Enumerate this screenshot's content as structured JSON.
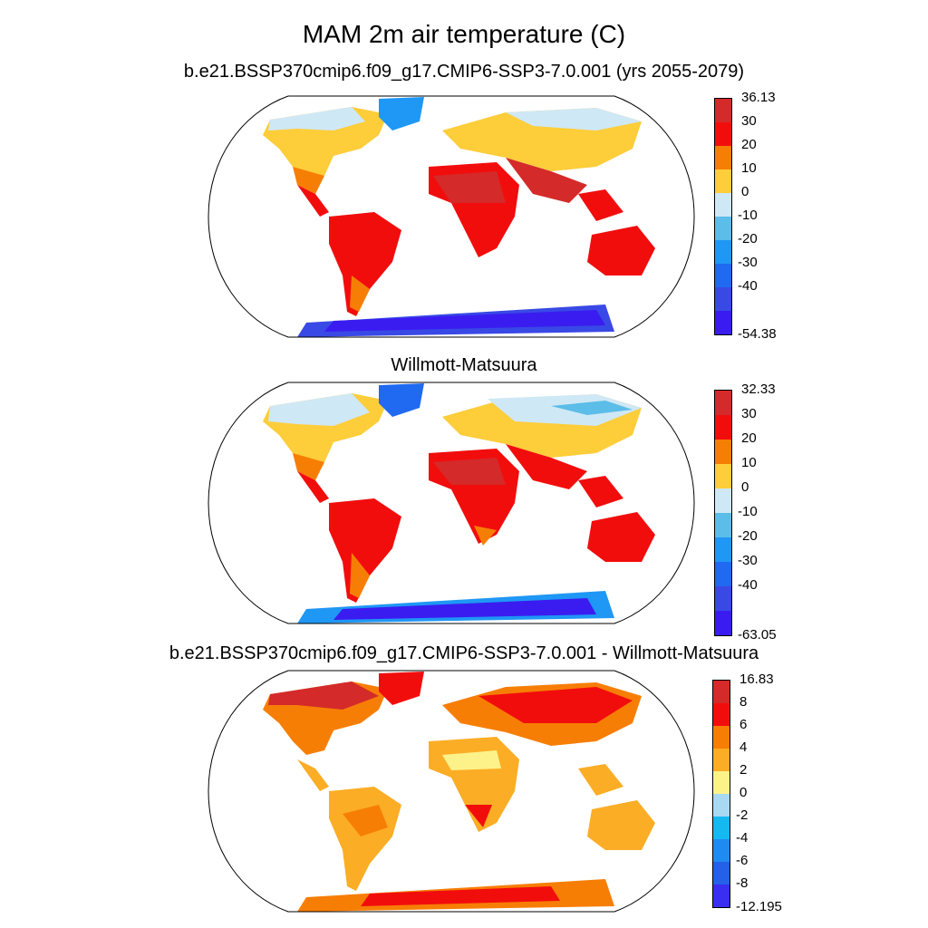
{
  "title": "MAM 2m air temperature (C)",
  "panels": [
    {
      "title": "b.e21.BSSP370cmip6.f09_g17.CMIP6-SSP3-7.0.001 (yrs 2055-2079)",
      "colorbar": {
        "labels": [
          "36.13",
          "30",
          "20",
          "10",
          "0",
          "-10",
          "-20",
          "-30",
          "-40",
          "-54.38"
        ],
        "colors": [
          "#d42a2a",
          "#f20d0d",
          "#f77e05",
          "#fdcd3a",
          "#cfe8f5",
          "#5bbde8",
          "#1f97f5",
          "#1f6af0",
          "#3949e5",
          "#3a1cf0"
        ]
      }
    },
    {
      "title": "Willmott-Matsuura",
      "colorbar": {
        "labels": [
          "32.33",
          "30",
          "20",
          "10",
          "0",
          "-10",
          "-20",
          "-30",
          "-40",
          "-63.05"
        ],
        "colors": [
          "#d42a2a",
          "#f20d0d",
          "#f77e05",
          "#fdcd3a",
          "#cfe8f5",
          "#5bbde8",
          "#1f97f5",
          "#1f6af0",
          "#3949e5",
          "#3a1cf0"
        ]
      }
    },
    {
      "title": "b.e21.BSSP370cmip6.f09_g17.CMIP6-SSP3-7.0.001 - Willmott-Matsuura",
      "colorbar": {
        "labels": [
          "16.83",
          "8",
          "6",
          "4",
          "2",
          "0",
          "-2",
          "-4",
          "-6",
          "-8",
          "-12.195"
        ],
        "colors": [
          "#d42a2a",
          "#f20d0d",
          "#f77e05",
          "#fbad25",
          "#fdf28a",
          "#a9d8f2",
          "#16b8f0",
          "#1f8bf0",
          "#2460e8",
          "#3a2ef0"
        ]
      }
    }
  ]
}
